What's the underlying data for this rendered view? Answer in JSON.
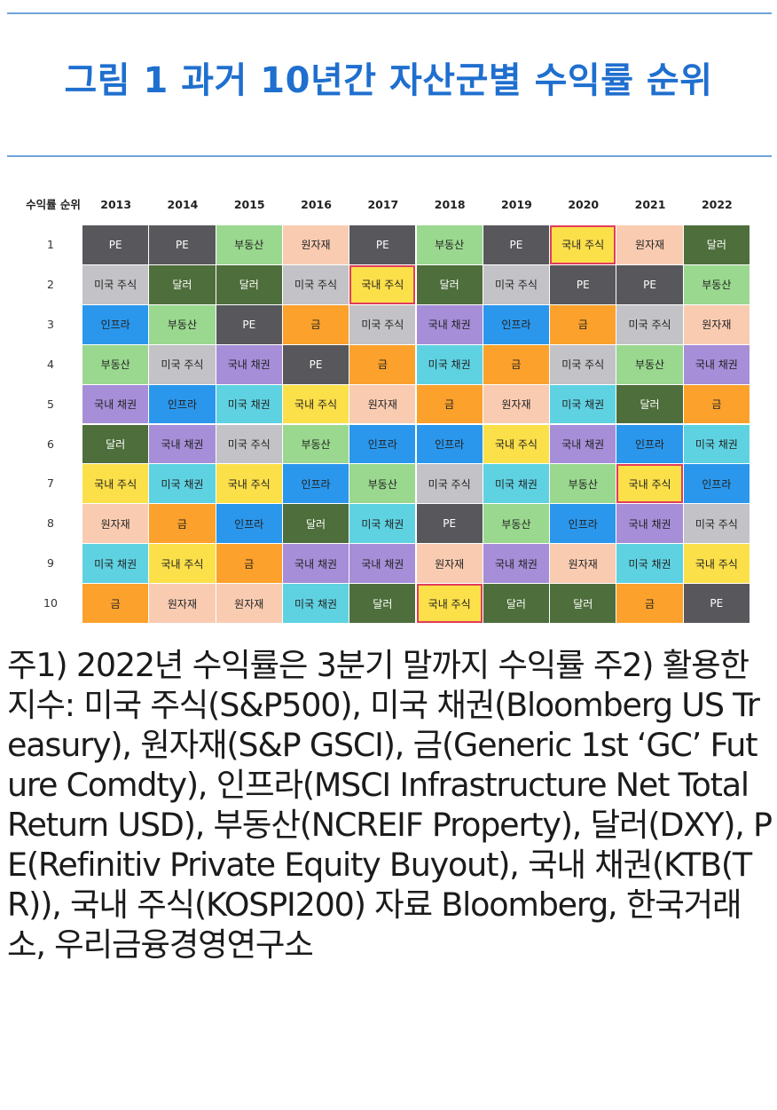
{
  "title": "그림 1 과거 10년간 자산군별 수익률 순위",
  "notes": "주1) 2022년 수익률은 3분기 말까지 수익률 주2) 활용한 지수: 미국 주식(S&P500), 미국 채권(Bloomberg US Treasury), 원자재(S&P GSCI), 금(Generic 1st ‘GC’ Future Comdty), 인프라(MSCI Infrastructure Net Total Return USD), 부동산(NCREIF Property), 달러(DXY), PE(Refinitiv Private Equity Buyout), 국내 채권(KTB(TR)), 국내 주식(KOSPI200) 자료 Bloomberg, 한국거래소, 우리금융경영연구소",
  "colors": {
    "PE": "#58585c",
    "미국 주식": "#c3c3c7",
    "인프라": "#2b97ec",
    "부동산": "#9ad88f",
    "국내 채권": "#a68ed8",
    "달러": "#4e6e3b",
    "국내 주식": "#fce04a",
    "원자재": "#f9ccb2",
    "미국 채권": "#5fd2e2",
    "금": "#fba12c",
    "highlight": "#e23c5a",
    "title": "#1f6fcf"
  },
  "chart_data": {
    "type": "table",
    "corner_label": "수익률 순위",
    "years": [
      "2013",
      "2014",
      "2015",
      "2016",
      "2017",
      "2018",
      "2019",
      "2020",
      "2021",
      "2022"
    ],
    "ranks": [
      "1",
      "2",
      "3",
      "4",
      "5",
      "6",
      "7",
      "8",
      "9",
      "10"
    ],
    "columns": [
      [
        "PE",
        "미국 주식",
        "인프라",
        "부동산",
        "국내 채권",
        "달러",
        "국내 주식",
        "원자재",
        "미국 채권",
        "금"
      ],
      [
        "PE",
        "달러",
        "부동산",
        "미국 주식",
        "인프라",
        "국내 채권",
        "미국 채권",
        "금",
        "국내 주식",
        "원자재"
      ],
      [
        "부동산",
        "달러",
        "PE",
        "국내 채권",
        "미국 채권",
        "미국 주식",
        "국내 주식",
        "인프라",
        "금",
        "원자재"
      ],
      [
        "원자재",
        "미국 주식",
        "금",
        "PE",
        "국내 주식",
        "부동산",
        "인프라",
        "달러",
        "국내 채권",
        "미국 채권"
      ],
      [
        "PE",
        "국내 주식",
        "미국 주식",
        "금",
        "원자재",
        "인프라",
        "부동산",
        "미국 채권",
        "국내 채권",
        "달러"
      ],
      [
        "부동산",
        "달러",
        "국내 채권",
        "미국 채권",
        "금",
        "인프라",
        "미국 주식",
        "PE",
        "원자재",
        "국내 주식"
      ],
      [
        "PE",
        "미국 주식",
        "인프라",
        "금",
        "원자재",
        "국내 주식",
        "미국 채권",
        "부동산",
        "국내 채권",
        "달러"
      ],
      [
        "국내 주식",
        "PE",
        "금",
        "미국 주식",
        "미국 채권",
        "국내 채권",
        "부동산",
        "인프라",
        "원자재",
        "달러"
      ],
      [
        "원자재",
        "PE",
        "미국 주식",
        "부동산",
        "달러",
        "인프라",
        "국내 주식",
        "국내 채권",
        "미국 채권",
        "금"
      ],
      [
        "달러",
        "부동산",
        "원자재",
        "국내 채권",
        "금",
        "미국 채권",
        "인프라",
        "미국 주식",
        "국내 주식",
        "PE"
      ]
    ],
    "highlighted": [
      {
        "year": "2017",
        "rank": "2"
      },
      {
        "year": "2018",
        "rank": "10"
      },
      {
        "year": "2020",
        "rank": "1"
      },
      {
        "year": "2021",
        "rank": "7"
      }
    ]
  }
}
